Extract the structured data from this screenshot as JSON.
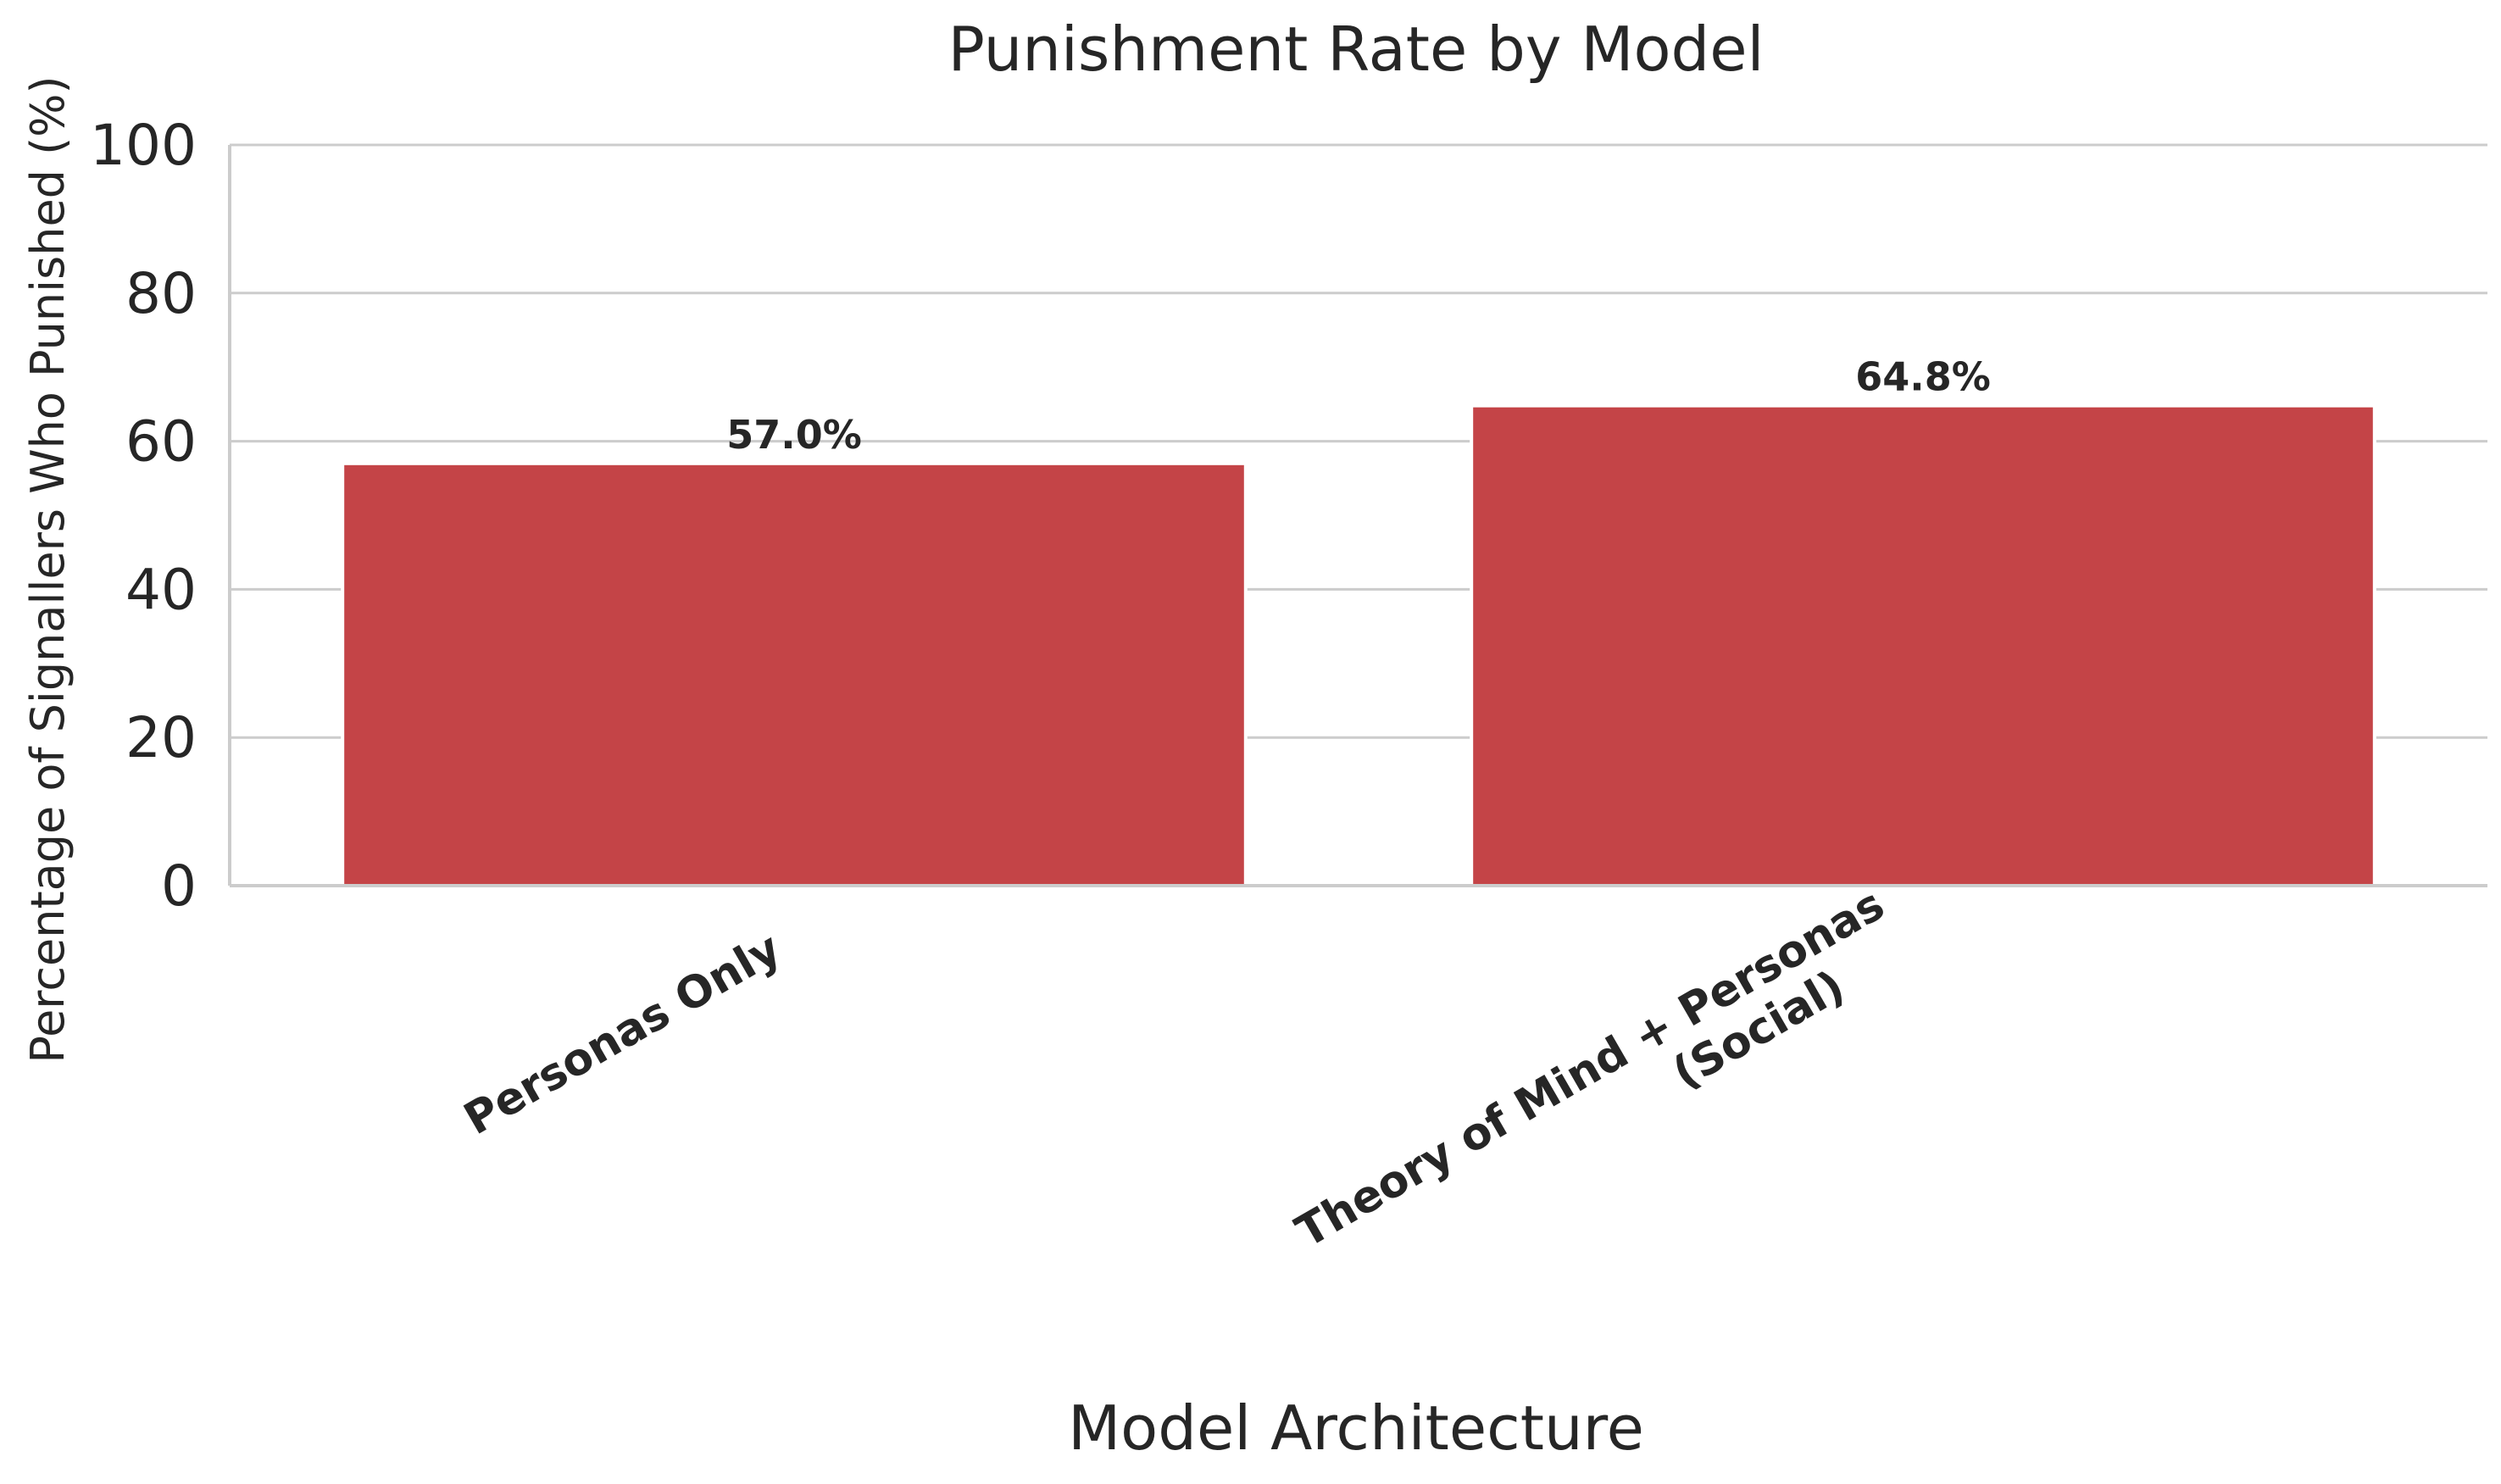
{
  "chart_data": {
    "type": "bar",
    "title": "Punishment Rate by Model",
    "xlabel": "Model Architecture",
    "ylabel": "Percentage of Signallers Who Punished (%)",
    "categories": [
      [
        "Personas Only"
      ],
      [
        "Theory of Mind + Personas",
        "(Social)"
      ]
    ],
    "values": [
      57.0,
      64.8
    ],
    "value_labels": [
      "57.0%",
      "64.8%"
    ],
    "ylim": [
      0,
      100
    ],
    "yticks": [
      0,
      20,
      40,
      60,
      80,
      100
    ],
    "grid": "horizontal",
    "bar_color": "#c44447",
    "grid_color": "#cccccc",
    "text_color": "#262626"
  }
}
